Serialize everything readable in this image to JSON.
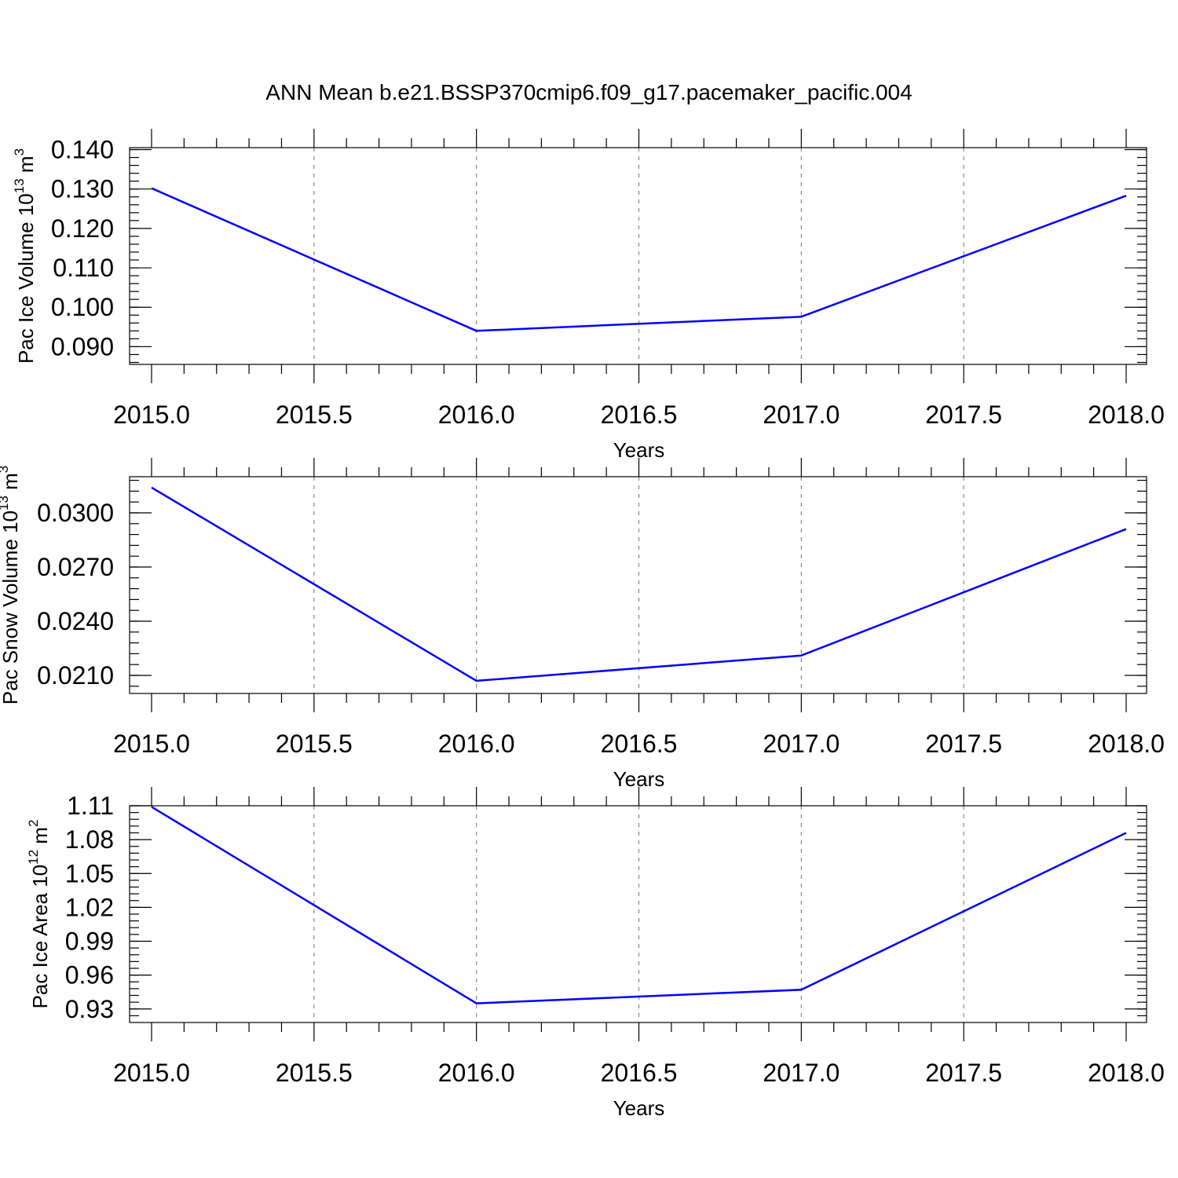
{
  "title": "ANN Mean b.e21.BSSP370cmip6.f09_g17.pacemaker_pacific.004",
  "colors": {
    "line": "#0000ff",
    "axis": "#000000",
    "grid": "#888888",
    "background": "#ffffff"
  },
  "chart_data": [
    {
      "type": "line",
      "ylabel": {
        "text": "Pac Ice Volume 10",
        "exp": "13",
        "unit": "m",
        "unit_exp": "3"
      },
      "xlabel": "Years",
      "xlim": [
        2015.0,
        2018.0
      ],
      "ylim": [
        0.0855,
        0.1405
      ],
      "xticks": [
        "2015.0",
        "2015.5",
        "2016.0",
        "2016.5",
        "2017.0",
        "2017.5",
        "2018.0"
      ],
      "yticks": [
        "0.090",
        "0.100",
        "0.110",
        "0.120",
        "0.130",
        "0.140"
      ],
      "ytick_values": [
        0.09,
        0.1,
        0.11,
        0.12,
        0.13,
        0.14
      ],
      "x": [
        2015,
        2016,
        2017,
        2018
      ],
      "y": [
        0.1302,
        0.094,
        0.0976,
        0.1283
      ],
      "grid": "vertical dashed at major x ticks"
    },
    {
      "type": "line",
      "ylabel": {
        "text": "Pac Snow Volume 10",
        "exp": "13",
        "unit": "m",
        "unit_exp": "3"
      },
      "xlabel": "Years",
      "xlim": [
        2015.0,
        2018.0
      ],
      "ylim": [
        0.02,
        0.032
      ],
      "xticks": [
        "2015.0",
        "2015.5",
        "2016.0",
        "2016.5",
        "2017.0",
        "2017.5",
        "2018.0"
      ],
      "yticks": [
        "0.0210",
        "0.0240",
        "0.0270",
        "0.0300"
      ],
      "ytick_values": [
        0.021,
        0.024,
        0.027,
        0.03
      ],
      "x": [
        2015,
        2016,
        2017,
        2018
      ],
      "y": [
        0.0314,
        0.0207,
        0.0221,
        0.0291
      ],
      "grid": "vertical dashed at major x ticks"
    },
    {
      "type": "line",
      "ylabel": {
        "text": "Pac Ice Area 10",
        "exp": "12",
        "unit": "m",
        "unit_exp": "2"
      },
      "xlabel": "Years",
      "xlim": [
        2015.0,
        2018.0
      ],
      "ylim": [
        0.918,
        1.11
      ],
      "xticks": [
        "2015.0",
        "2015.5",
        "2016.0",
        "2016.5",
        "2017.0",
        "2017.5",
        "2018.0"
      ],
      "yticks": [
        "0.93",
        "0.96",
        "0.99",
        "1.02",
        "1.05",
        "1.08",
        "1.11"
      ],
      "ytick_values": [
        0.93,
        0.96,
        0.99,
        1.02,
        1.05,
        1.08,
        1.11
      ],
      "x": [
        2015,
        2016,
        2017,
        2018
      ],
      "y": [
        1.109,
        0.935,
        0.947,
        1.086
      ],
      "grid": "vertical dashed at major x ticks"
    }
  ]
}
